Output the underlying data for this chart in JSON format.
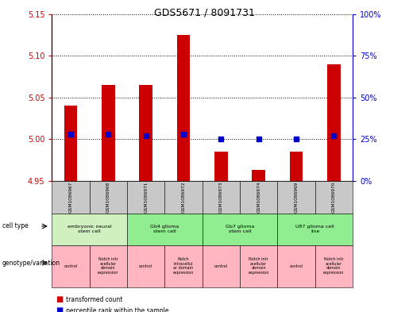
{
  "title": "GDS5671 / 8091731",
  "samples": [
    "GSM1086967",
    "GSM1086968",
    "GSM1086971",
    "GSM1086972",
    "GSM1086973",
    "GSM1086974",
    "GSM1086969",
    "GSM1086970"
  ],
  "transformed_count": [
    5.04,
    5.065,
    5.065,
    5.125,
    4.985,
    4.963,
    4.985,
    5.09
  ],
  "percentile_rank": [
    28,
    28,
    27,
    28,
    25,
    25,
    25,
    27
  ],
  "bar_base": 4.95,
  "ylim_left": [
    4.95,
    5.15
  ],
  "ylim_right": [
    0,
    100
  ],
  "yticks_left": [
    4.95,
    5.0,
    5.05,
    5.1,
    5.15
  ],
  "yticks_right": [
    0,
    25,
    50,
    75,
    100
  ],
  "cell_types": [
    {
      "label": "embryonic neural\nstem cell",
      "span": [
        0,
        2
      ],
      "color": "#d0f0c0"
    },
    {
      "label": "Gb4 glioma\nstem cell",
      "span": [
        2,
        4
      ],
      "color": "#90ee90"
    },
    {
      "label": "Gb7 glioma\nstem cell",
      "span": [
        4,
        6
      ],
      "color": "#90ee90"
    },
    {
      "label": "U87 glioma cell\nline",
      "span": [
        6,
        8
      ],
      "color": "#90ee90"
    }
  ],
  "genotype_variation": [
    {
      "label": "control",
      "span": [
        0,
        1
      ],
      "color": "#ffb6c1"
    },
    {
      "label": "Notch intr\nacellular\ndomain\nexpression",
      "span": [
        1,
        2
      ],
      "color": "#ffb6c1"
    },
    {
      "label": "control",
      "span": [
        2,
        3
      ],
      "color": "#ffb6c1"
    },
    {
      "label": "Notch\nintracellul\nar domain\nexpression",
      "span": [
        3,
        4
      ],
      "color": "#ffb6c1"
    },
    {
      "label": "control",
      "span": [
        4,
        5
      ],
      "color": "#ffb6c1"
    },
    {
      "label": "Notch intr\nacellular\ndomain\nexpression",
      "span": [
        5,
        6
      ],
      "color": "#ffb6c1"
    },
    {
      "label": "control",
      "span": [
        6,
        7
      ],
      "color": "#ffb6c1"
    },
    {
      "label": "Notch intr\nacellular\ndomain\nexpression",
      "span": [
        7,
        8
      ],
      "color": "#ffb6c1"
    }
  ],
  "bar_color": "#cc0000",
  "dot_color": "#0000cc",
  "bar_width": 0.35,
  "dot_size": 18,
  "left_axis_color": "#cc0000",
  "right_axis_color": "#0000cc",
  "grid_color": "black",
  "grid_linestyle": "dotted",
  "grid_linewidth": 0.7,
  "plot_bg_color": "#ffffff",
  "gsm_row_color": "#c8c8c8",
  "cell_type_light_green": "#d0f0c0",
  "cell_type_green": "#90ee90",
  "genotype_pink": "#ffb6c1"
}
